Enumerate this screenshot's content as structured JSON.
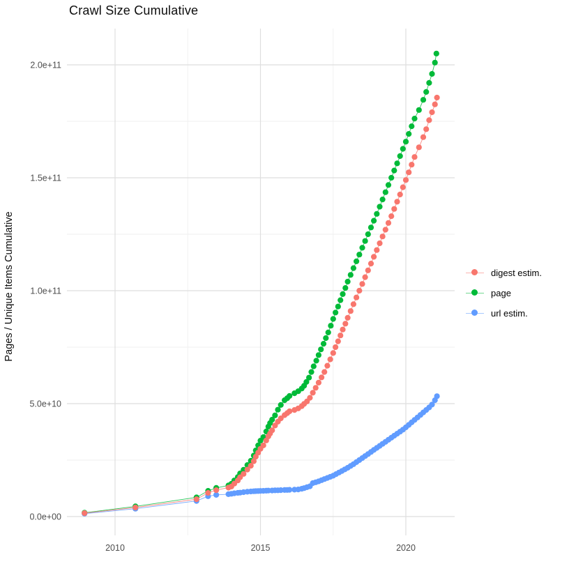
{
  "title": "Crawl Size Cumulative",
  "y_axis_title": "Pages / Unique Items Cumulative",
  "legend": {
    "position": "right",
    "items": [
      {
        "label": "digest estim.",
        "color": "#F8766D"
      },
      {
        "label": "page",
        "color": "#00BA38"
      },
      {
        "label": "url estim.",
        "color": "#619CFF"
      }
    ]
  },
  "colors": {
    "digest": "#F8766D",
    "page": "#00BA38",
    "url": "#619CFF",
    "axis_text": "#4D4D4D",
    "grid_major": "#DEDEDE",
    "grid_minor": "#EFEFEF",
    "background": "#FFFFFF"
  },
  "chart_data": {
    "type": "scatter",
    "title": "Crawl Size Cumulative",
    "xlabel": "",
    "ylabel": "Pages / Unique Items Cumulative",
    "unit": "values in billions of pages (1e9); y tick labels shown in scientific notation",
    "x_ticks": [
      {
        "label": "2010",
        "year": 2010
      },
      {
        "label": "2015",
        "year": 2015
      },
      {
        "label": "2020",
        "year": 2020
      }
    ],
    "x_minor_ticks": [
      2012.5,
      2017.5
    ],
    "y_ticks": [
      {
        "label": "0.0e+00",
        "value": 0
      },
      {
        "label": "5.0e+10",
        "value": 50
      },
      {
        "label": "1.0e+11",
        "value": 100
      },
      {
        "label": "1.5e+11",
        "value": 150
      },
      {
        "label": "2.0e+11",
        "value": 200
      }
    ],
    "y_minor_ticks": [
      25,
      75,
      125,
      175
    ],
    "xlim": [
      2008.35,
      2021.7
    ],
    "ylim_e9": [
      -8.3,
      216
    ],
    "grid": true,
    "legend_position": "right",
    "series": [
      {
        "name": "page",
        "color": "#00BA38",
        "points": [
          [
            2008.95,
            1.7
          ],
          [
            2010.7,
            4.5
          ],
          [
            2012.8,
            8.5
          ],
          [
            2013.2,
            11.4
          ],
          [
            2013.48,
            12.7
          ],
          [
            2013.9,
            13.8
          ],
          [
            2014.0,
            14.5
          ],
          [
            2014.1,
            16.0
          ],
          [
            2014.22,
            17.5
          ],
          [
            2014.3,
            19.1
          ],
          [
            2014.42,
            20.7
          ],
          [
            2014.55,
            22.8
          ],
          [
            2014.67,
            24.7
          ],
          [
            2014.77,
            27.0
          ],
          [
            2014.84,
            29.3
          ],
          [
            2014.92,
            31.5
          ],
          [
            2015.0,
            33.6
          ],
          [
            2015.1,
            35.2
          ],
          [
            2015.2,
            37.7
          ],
          [
            2015.27,
            39.8
          ],
          [
            2015.33,
            41.4
          ],
          [
            2015.4,
            42.9
          ],
          [
            2015.5,
            44.8
          ],
          [
            2015.6,
            47.3
          ],
          [
            2015.7,
            49.4
          ],
          [
            2015.83,
            51.5
          ],
          [
            2015.92,
            52.4
          ],
          [
            2016.0,
            53.4
          ],
          [
            2016.17,
            54.6
          ],
          [
            2016.3,
            55.5
          ],
          [
            2016.42,
            56.7
          ],
          [
            2016.5,
            57.9
          ],
          [
            2016.58,
            59.6
          ],
          [
            2016.67,
            61.5
          ],
          [
            2016.75,
            64.0
          ],
          [
            2016.83,
            66.5
          ],
          [
            2016.92,
            69.0
          ],
          [
            2017.0,
            71.5
          ],
          [
            2017.08,
            74.0
          ],
          [
            2017.17,
            76.5
          ],
          [
            2017.25,
            79.0
          ],
          [
            2017.33,
            81.5
          ],
          [
            2017.42,
            84.5
          ],
          [
            2017.5,
            87.5
          ],
          [
            2017.58,
            90.3
          ],
          [
            2017.67,
            93.0
          ],
          [
            2017.75,
            95.8
          ],
          [
            2017.83,
            98.5
          ],
          [
            2017.92,
            101.2
          ],
          [
            2018.0,
            104.0
          ],
          [
            2018.1,
            107.0
          ],
          [
            2018.2,
            110.0
          ],
          [
            2018.3,
            113.0
          ],
          [
            2018.4,
            116.0
          ],
          [
            2018.5,
            119.0
          ],
          [
            2018.6,
            122.0
          ],
          [
            2018.7,
            125.0
          ],
          [
            2018.8,
            128.0
          ],
          [
            2018.9,
            131.0
          ],
          [
            2019.0,
            134.0
          ],
          [
            2019.1,
            137.2
          ],
          [
            2019.2,
            140.4
          ],
          [
            2019.3,
            143.6
          ],
          [
            2019.4,
            146.8
          ],
          [
            2019.5,
            150.0
          ],
          [
            2019.6,
            153.2
          ],
          [
            2019.7,
            156.4
          ],
          [
            2019.8,
            159.6
          ],
          [
            2019.9,
            162.8
          ],
          [
            2020.0,
            166.0
          ],
          [
            2020.1,
            169.4
          ],
          [
            2020.2,
            172.8
          ],
          [
            2020.3,
            176.2
          ],
          [
            2020.45,
            180.0
          ],
          [
            2020.6,
            184.5
          ],
          [
            2020.7,
            188.0
          ],
          [
            2020.8,
            192.0
          ],
          [
            2020.9,
            196.0
          ],
          [
            2021.0,
            201.0
          ],
          [
            2021.05,
            205.0
          ]
        ]
      },
      {
        "name": "url estim.",
        "color": "#619CFF",
        "points": [
          [
            2008.95,
            1.3
          ],
          [
            2010.7,
            3.5
          ],
          [
            2012.8,
            6.9
          ],
          [
            2013.2,
            9.0
          ],
          [
            2013.48,
            9.6
          ],
          [
            2013.9,
            9.9
          ],
          [
            2014.0,
            10.1
          ],
          [
            2014.1,
            10.3
          ],
          [
            2014.22,
            10.5
          ],
          [
            2014.3,
            10.6
          ],
          [
            2014.42,
            10.8
          ],
          [
            2014.55,
            11.0
          ],
          [
            2014.67,
            11.1
          ],
          [
            2014.77,
            11.2
          ],
          [
            2014.84,
            11.25
          ],
          [
            2014.92,
            11.3
          ],
          [
            2015.0,
            11.35
          ],
          [
            2015.1,
            11.4
          ],
          [
            2015.2,
            11.45
          ],
          [
            2015.27,
            11.5
          ],
          [
            2015.4,
            11.55
          ],
          [
            2015.5,
            11.6
          ],
          [
            2015.6,
            11.65
          ],
          [
            2015.7,
            11.7
          ],
          [
            2015.83,
            11.75
          ],
          [
            2015.92,
            11.8
          ],
          [
            2016.0,
            11.85
          ],
          [
            2016.17,
            11.9
          ],
          [
            2016.3,
            12.0
          ],
          [
            2016.42,
            12.3
          ],
          [
            2016.5,
            12.6
          ],
          [
            2016.6,
            13.0
          ],
          [
            2016.7,
            13.4
          ],
          [
            2016.8,
            14.8
          ],
          [
            2016.9,
            15.2
          ],
          [
            2017.0,
            15.6
          ],
          [
            2017.1,
            16.1
          ],
          [
            2017.2,
            16.6
          ],
          [
            2017.3,
            17.1
          ],
          [
            2017.4,
            17.6
          ],
          [
            2017.5,
            18.1
          ],
          [
            2017.6,
            18.8
          ],
          [
            2017.7,
            19.5
          ],
          [
            2017.8,
            20.2
          ],
          [
            2017.9,
            20.9
          ],
          [
            2018.0,
            21.6
          ],
          [
            2018.1,
            22.4
          ],
          [
            2018.2,
            23.2
          ],
          [
            2018.3,
            24.1
          ],
          [
            2018.4,
            25.0
          ],
          [
            2018.5,
            25.9
          ],
          [
            2018.6,
            26.8
          ],
          [
            2018.7,
            27.7
          ],
          [
            2018.8,
            28.6
          ],
          [
            2018.9,
            29.5
          ],
          [
            2019.0,
            30.4
          ],
          [
            2019.1,
            31.3
          ],
          [
            2019.2,
            32.2
          ],
          [
            2019.3,
            33.1
          ],
          [
            2019.4,
            34.0
          ],
          [
            2019.5,
            34.9
          ],
          [
            2019.6,
            35.8
          ],
          [
            2019.7,
            36.7
          ],
          [
            2019.8,
            37.6
          ],
          [
            2019.9,
            38.5
          ],
          [
            2020.0,
            39.5
          ],
          [
            2020.1,
            40.6
          ],
          [
            2020.2,
            41.7
          ],
          [
            2020.3,
            42.8
          ],
          [
            2020.4,
            43.9
          ],
          [
            2020.5,
            45.0
          ],
          [
            2020.6,
            46.1
          ],
          [
            2020.7,
            47.2
          ],
          [
            2020.8,
            48.3
          ],
          [
            2020.9,
            49.6
          ],
          [
            2021.0,
            51.5
          ],
          [
            2021.07,
            53.3
          ]
        ]
      },
      {
        "name": "digest estim.",
        "color": "#F8766D",
        "points": [
          [
            2008.95,
            1.5
          ],
          [
            2010.7,
            4.0
          ],
          [
            2012.8,
            7.7
          ],
          [
            2013.2,
            10.5
          ],
          [
            2013.48,
            11.7
          ],
          [
            2013.9,
            12.8
          ],
          [
            2014.0,
            13.3
          ],
          [
            2014.1,
            14.6
          ],
          [
            2014.22,
            16.0
          ],
          [
            2014.3,
            17.4
          ],
          [
            2014.42,
            18.9
          ],
          [
            2014.55,
            20.8
          ],
          [
            2014.67,
            22.5
          ],
          [
            2014.77,
            24.5
          ],
          [
            2014.84,
            26.5
          ],
          [
            2014.92,
            28.3
          ],
          [
            2015.0,
            30.0
          ],
          [
            2015.1,
            31.5
          ],
          [
            2015.2,
            33.7
          ],
          [
            2015.27,
            35.5
          ],
          [
            2015.33,
            36.8
          ],
          [
            2015.4,
            38.2
          ],
          [
            2015.5,
            40.3
          ],
          [
            2015.6,
            42.0
          ],
          [
            2015.7,
            43.5
          ],
          [
            2015.83,
            44.9
          ],
          [
            2015.92,
            45.8
          ],
          [
            2016.0,
            46.6
          ],
          [
            2016.17,
            47.2
          ],
          [
            2016.3,
            47.9
          ],
          [
            2016.42,
            48.9
          ],
          [
            2016.5,
            49.9
          ],
          [
            2016.6,
            51.0
          ],
          [
            2016.7,
            52.6
          ],
          [
            2016.8,
            54.8
          ],
          [
            2016.9,
            57.0
          ],
          [
            2017.0,
            59.3
          ],
          [
            2017.1,
            61.6
          ],
          [
            2017.2,
            64.0
          ],
          [
            2017.3,
            66.8
          ],
          [
            2017.4,
            69.6
          ],
          [
            2017.5,
            72.4
          ],
          [
            2017.58,
            75.0
          ],
          [
            2017.67,
            77.6
          ],
          [
            2017.75,
            80.2
          ],
          [
            2017.83,
            82.8
          ],
          [
            2017.92,
            85.4
          ],
          [
            2018.0,
            88.0
          ],
          [
            2018.1,
            91.0
          ],
          [
            2018.2,
            94.0
          ],
          [
            2018.3,
            97.0
          ],
          [
            2018.4,
            100.0
          ],
          [
            2018.5,
            103.0
          ],
          [
            2018.6,
            106.0
          ],
          [
            2018.7,
            109.0
          ],
          [
            2018.8,
            112.0
          ],
          [
            2018.9,
            115.0
          ],
          [
            2019.0,
            118.0
          ],
          [
            2019.1,
            121.0
          ],
          [
            2019.2,
            124.0
          ],
          [
            2019.3,
            127.0
          ],
          [
            2019.4,
            130.0
          ],
          [
            2019.5,
            133.0
          ],
          [
            2019.6,
            136.2
          ],
          [
            2019.7,
            139.4
          ],
          [
            2019.8,
            142.6
          ],
          [
            2019.9,
            145.8
          ],
          [
            2020.0,
            149.0
          ],
          [
            2020.1,
            152.4
          ],
          [
            2020.2,
            155.8
          ],
          [
            2020.3,
            159.2
          ],
          [
            2020.45,
            163.5
          ],
          [
            2020.6,
            168.0
          ],
          [
            2020.7,
            171.5
          ],
          [
            2020.8,
            175.5
          ],
          [
            2020.9,
            179.0
          ],
          [
            2021.0,
            182.5
          ],
          [
            2021.07,
            185.5
          ]
        ]
      }
    ]
  }
}
